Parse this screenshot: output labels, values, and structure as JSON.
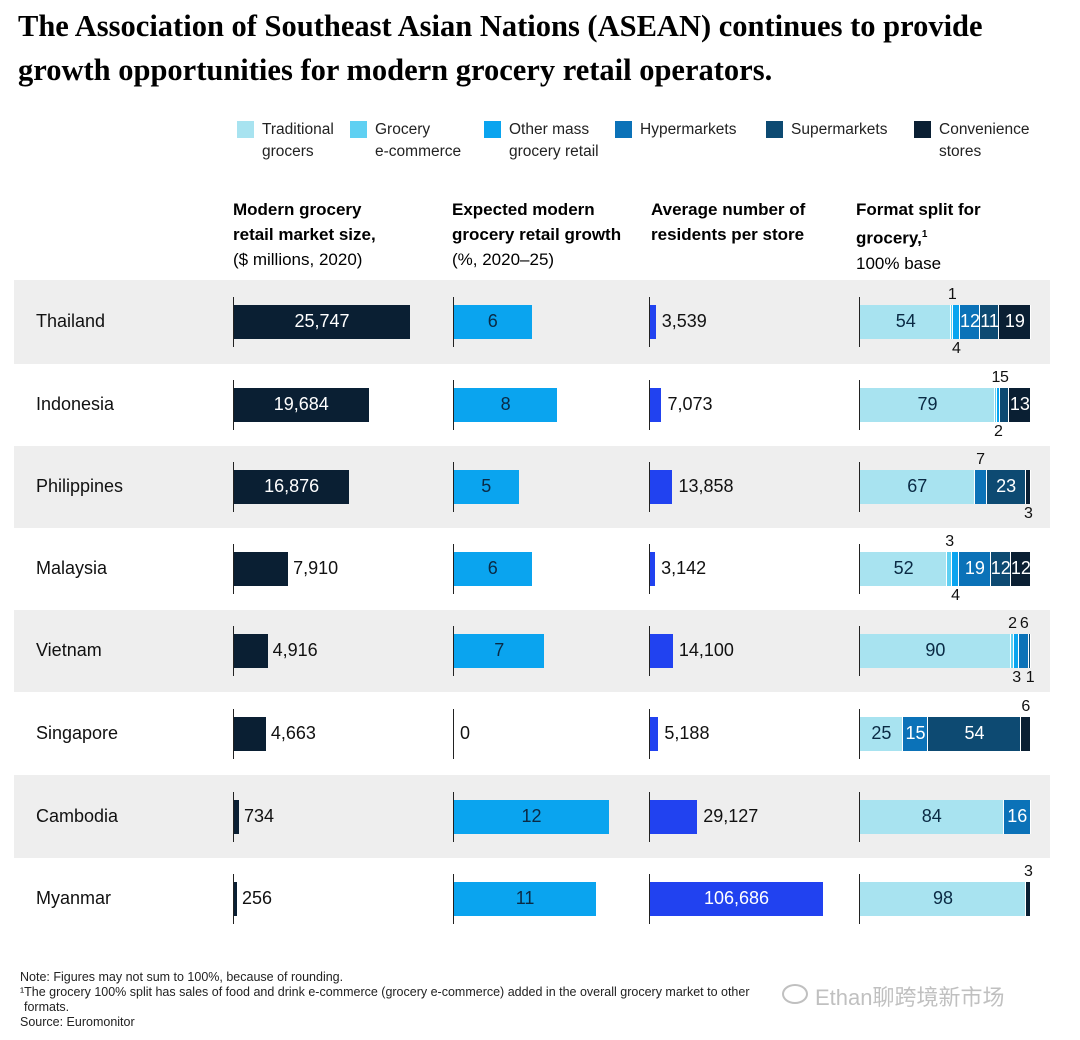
{
  "title": "The Association of Southeast Asian Nations (ASEAN) continues to provide growth opportunities for modern grocery retail operators.",
  "legend": [
    {
      "line1": "Traditional",
      "line2": "grocers",
      "color": "#a8e3f0"
    },
    {
      "line1": "Grocery",
      "line2": "e-commerce",
      "color": "#5fd0f2"
    },
    {
      "line1": "Other mass",
      "line2": "grocery retail",
      "color": "#0aa4ef"
    },
    {
      "line1": "Hypermarkets",
      "line2": "",
      "color": "#0b72b8"
    },
    {
      "line1": "Supermarkets",
      "line2": "",
      "color": "#0d4a72"
    },
    {
      "line1": "Convenience",
      "line2": "stores",
      "color": "#0a1f33"
    }
  ],
  "columns": {
    "market": {
      "bold1": "Modern grocery",
      "bold2": "retail market size,",
      "sub": "($ millions, 2020)"
    },
    "growth": {
      "bold1": "Expected modern",
      "bold2": "grocery retail growth",
      "sub": "(%, 2020–25)"
    },
    "residents": {
      "bold1": "Average number of",
      "bold2": "residents per store",
      "sub": ""
    },
    "split": {
      "bold1": "Format split for",
      "bold2": "grocery,",
      "sup": "1",
      "sub": "100% base"
    }
  },
  "chart_data": {
    "type": "table",
    "countries": [
      "Thailand",
      "Indonesia",
      "Philippines",
      "Malaysia",
      "Vietnam",
      "Singapore",
      "Cambodia",
      "Myanmar"
    ],
    "market_size": {
      "labels": [
        "25,747",
        "19,684",
        "16,876",
        "7,910",
        "4,916",
        "4,663",
        "734",
        "256"
      ],
      "values": [
        25747,
        19684,
        16876,
        7910,
        4916,
        4663,
        734,
        256
      ],
      "color": "#0a1f33"
    },
    "growth": {
      "labels": [
        "6",
        "8",
        "5",
        "6",
        "7",
        "0",
        "12",
        "11"
      ],
      "values": [
        6,
        8,
        5,
        6,
        7,
        0,
        12,
        11
      ],
      "color": "#0aa4ef"
    },
    "residents": {
      "labels": [
        "3,539",
        "7,073",
        "13,858",
        "3,142",
        "14,100",
        "5,188",
        "29,127",
        "106,686"
      ],
      "values": [
        3539,
        7073,
        13858,
        3142,
        14100,
        5188,
        29127,
        106686
      ],
      "color": "#2142f0"
    },
    "format_split": {
      "formats": [
        "Traditional grocers",
        "Grocery e-commerce",
        "Other mass grocery retail",
        "Hypermarkets",
        "Supermarkets",
        "Convenience stores"
      ],
      "rows": [
        {
          "values": [
            54,
            1,
            4,
            12,
            11,
            19
          ],
          "labels": [
            "54",
            "1",
            "4",
            "12",
            "11",
            "19"
          ]
        },
        {
          "values": [
            79,
            1,
            2,
            0,
            5,
            13
          ],
          "labels": [
            "79",
            "1",
            "2",
            "",
            "5",
            "13"
          ]
        },
        {
          "values": [
            67,
            0,
            0,
            7,
            23,
            3
          ],
          "labels": [
            "67",
            "",
            "",
            "7",
            "23",
            "3"
          ]
        },
        {
          "values": [
            52,
            3,
            4,
            19,
            12,
            12
          ],
          "labels": [
            "52",
            "3",
            "4",
            "19",
            "12",
            "12"
          ]
        },
        {
          "values": [
            90,
            2,
            3,
            6,
            1,
            0
          ],
          "labels": [
            "90",
            "2",
            "3",
            "6",
            "1",
            ""
          ]
        },
        {
          "values": [
            25,
            0,
            0,
            15,
            54,
            6
          ],
          "labels": [
            "25",
            "",
            "",
            "15",
            "54",
            "6"
          ]
        },
        {
          "values": [
            84,
            0,
            0,
            16,
            0,
            0
          ],
          "labels": [
            "84",
            "",
            "",
            "16",
            "",
            ""
          ]
        },
        {
          "values": [
            98,
            0,
            0,
            0,
            0,
            3
          ],
          "labels": [
            "98",
            "",
            "",
            "",
            "",
            "3"
          ]
        }
      ]
    }
  },
  "footnotes": {
    "note": "Note: Figures may not sum to 100%, because of rounding.",
    "fn1": "¹The grocery 100% split has sales of food and drink e-commerce (grocery e-commerce) added in the overall grocery market to other",
    "fn1b": "formats.",
    "source": "Source: Euromonitor"
  },
  "watermark": "Ethan聊跨境新市场"
}
